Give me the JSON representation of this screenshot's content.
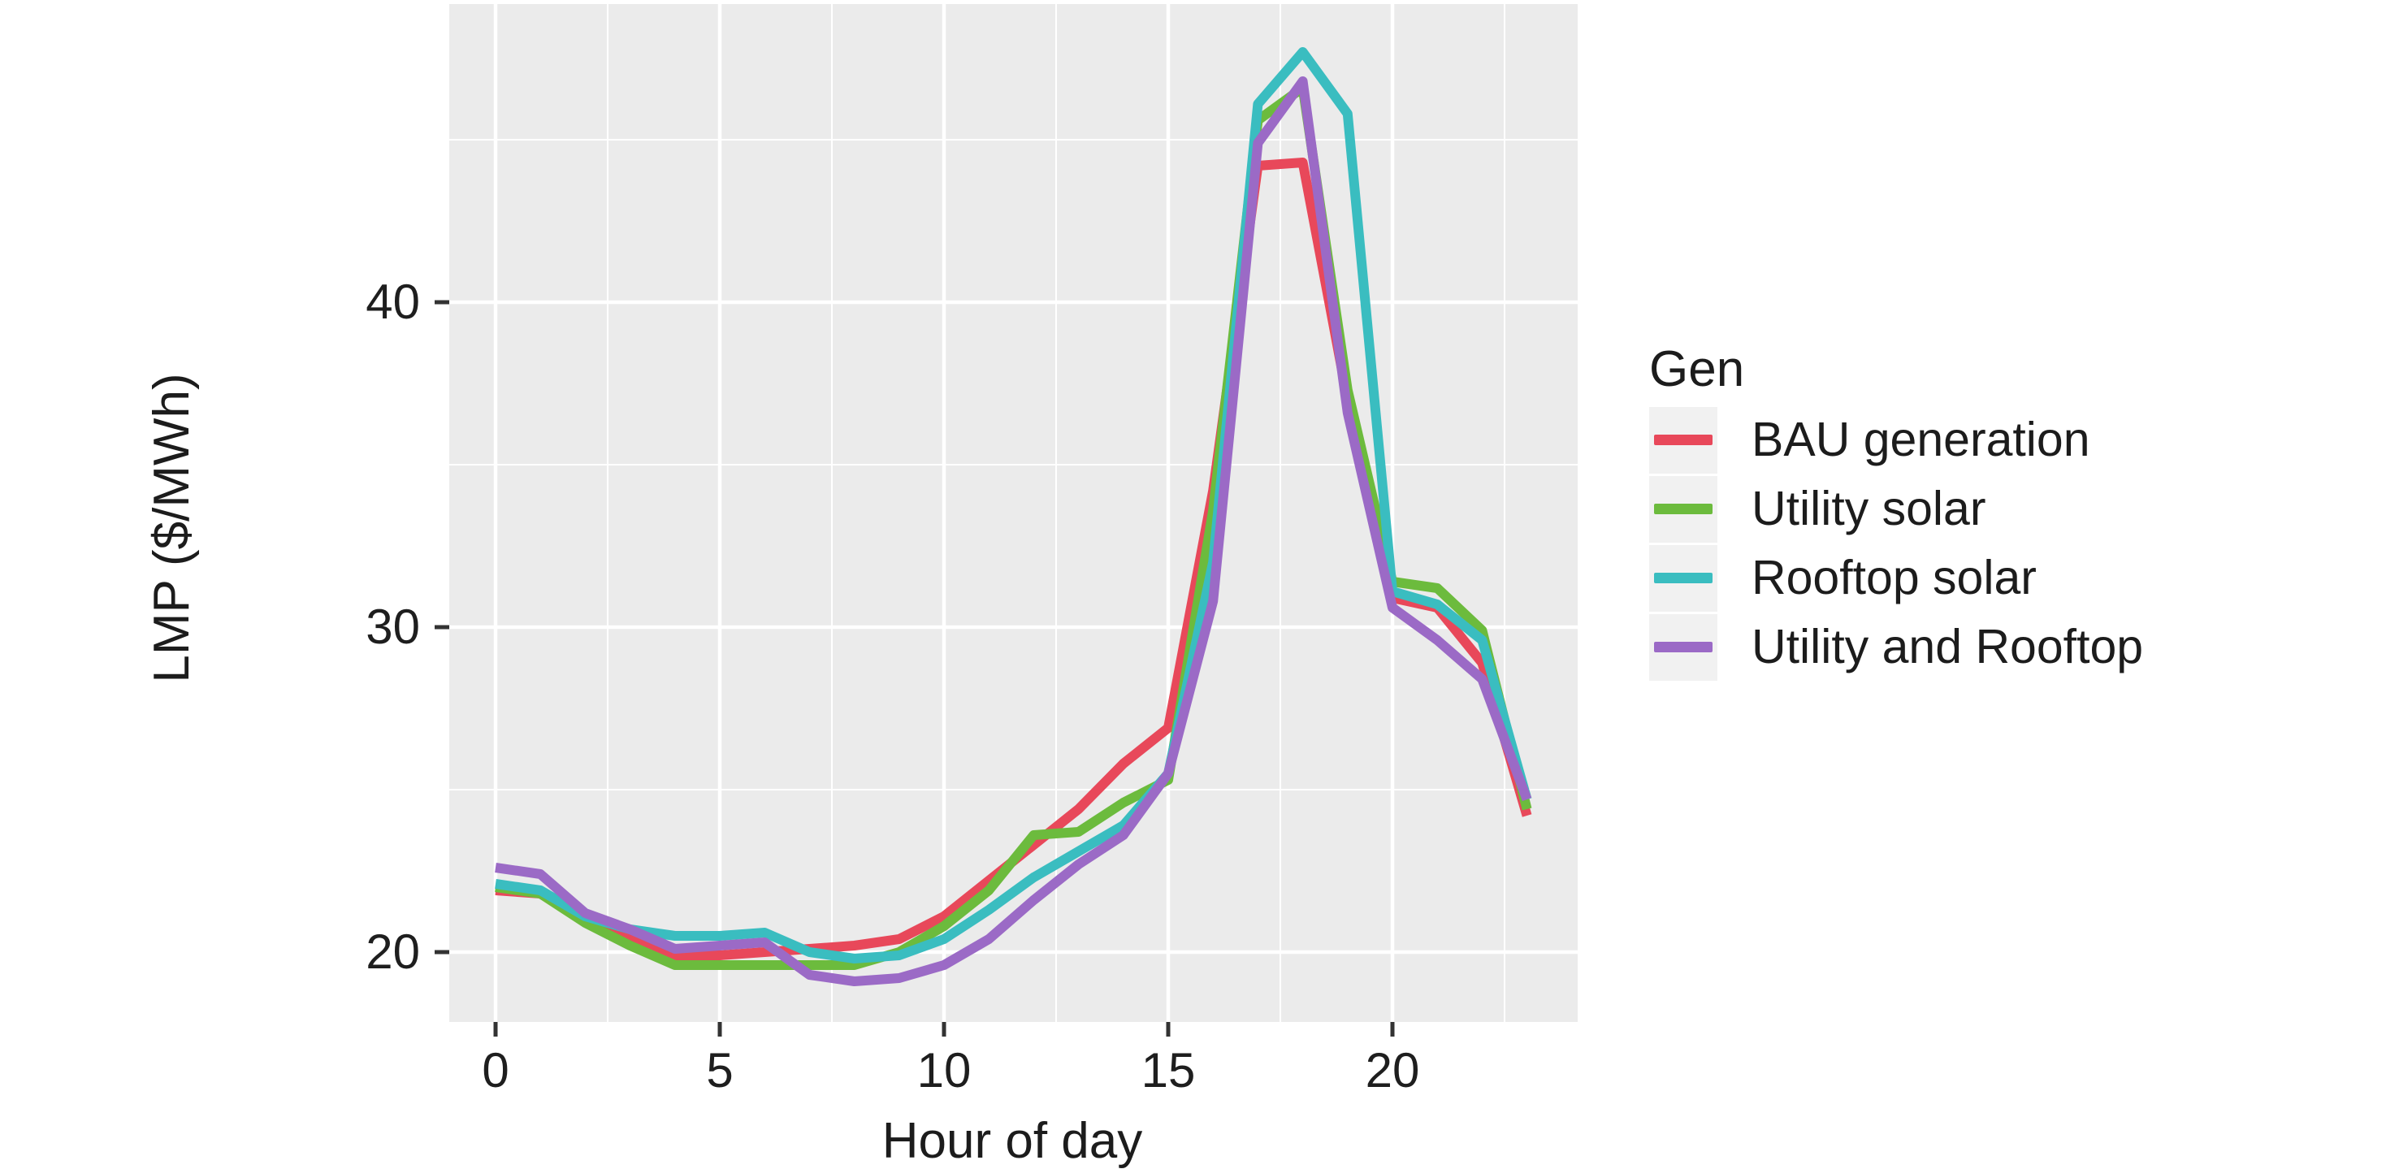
{
  "figure": {
    "background": "#ffffff",
    "panel_background": "#ebebeb",
    "gridline_color": "#ffffff",
    "tick_color": "#333333",
    "text_color": "#1c1c1c"
  },
  "legend": {
    "title": "Gen",
    "key_background": "#f1f1f1",
    "position": "right"
  },
  "chart_data": {
    "type": "line",
    "title": "",
    "xlabel": "Hour of day",
    "ylabel": "LMP ($/MWh)",
    "legend_title": "Gen",
    "legend_position": "right",
    "grid": "white major and minor gridlines on gray panel",
    "x": [
      0,
      1,
      2,
      3,
      4,
      5,
      6,
      7,
      8,
      9,
      10,
      11,
      12,
      13,
      14,
      15,
      16,
      17,
      18,
      19,
      20,
      21,
      22,
      23
    ],
    "x_ticks": [
      0,
      5,
      10,
      15,
      20
    ],
    "x_minor_ticks": [
      2.5,
      7.5,
      12.5,
      17.5,
      22.5
    ],
    "y_ticks": [
      20,
      30,
      40
    ],
    "y_minor_ticks": [
      25,
      35,
      45
    ],
    "xlim": [
      -1.15,
      24.15
    ],
    "ylim": [
      17.8,
      49.1
    ],
    "series": [
      {
        "name": "BAU generation",
        "color": "#e8485a",
        "values": [
          21.9,
          21.8,
          21.0,
          20.5,
          19.9,
          19.9,
          20.0,
          20.1,
          20.2,
          20.4,
          21.1,
          22.2,
          23.3,
          24.4,
          25.8,
          26.9,
          34.2,
          44.2,
          44.3,
          37.0,
          30.9,
          30.6,
          28.9,
          24.2
        ]
      },
      {
        "name": "Utility solar",
        "color": "#6cbb3d",
        "values": [
          22.0,
          21.8,
          20.9,
          20.2,
          19.6,
          19.6,
          19.6,
          19.6,
          19.6,
          20.0,
          20.8,
          21.9,
          23.6,
          23.7,
          24.6,
          25.3,
          33.6,
          45.6,
          46.6,
          37.3,
          31.4,
          31.2,
          29.9,
          24.4
        ]
      },
      {
        "name": "Rooftop solar",
        "color": "#3abdc0",
        "values": [
          22.1,
          21.9,
          21.1,
          20.7,
          20.5,
          20.5,
          20.6,
          20.0,
          19.8,
          19.9,
          20.4,
          21.3,
          22.3,
          23.1,
          23.9,
          25.5,
          32.0,
          46.1,
          47.7,
          45.8,
          31.1,
          30.7,
          29.6,
          24.7
        ]
      },
      {
        "name": "Utility and Rooftop",
        "color": "#9b6ac6",
        "values": [
          22.6,
          22.4,
          21.2,
          20.7,
          20.1,
          20.2,
          20.3,
          19.3,
          19.1,
          19.2,
          19.6,
          20.4,
          21.6,
          22.7,
          23.6,
          25.5,
          30.8,
          44.9,
          46.8,
          36.6,
          30.6,
          29.6,
          28.4,
          24.7
        ]
      }
    ]
  }
}
